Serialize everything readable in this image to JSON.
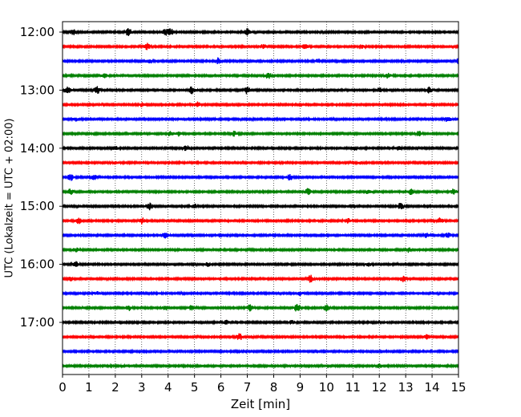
{
  "chart_data": {
    "type": "line",
    "title": "",
    "xlabel": "Zeit  [min]",
    "ylabel": "UTC (Lokalzeit = UTC + 02:00)",
    "xlim": [
      0,
      15
    ],
    "x_ticks": [
      "0",
      "1",
      "2",
      "3",
      "4",
      "5",
      "6",
      "7",
      "8",
      "9",
      "10",
      "11",
      "12",
      "13",
      "14",
      "15"
    ],
    "y_ticks": [
      "12:00",
      "13:00",
      "14:00",
      "15:00",
      "16:00",
      "17:00"
    ],
    "grid": "vertical dotted lines at every minute",
    "trace_start_times": [
      "12:00",
      "12:15",
      "12:30",
      "12:45",
      "13:00",
      "13:15",
      "13:30",
      "13:45",
      "14:00",
      "14:15",
      "14:30",
      "14:45",
      "15:00",
      "15:15",
      "15:30",
      "15:45",
      "16:00",
      "16:15",
      "16:30",
      "16:45",
      "17:00",
      "17:15",
      "17:30",
      "17:45"
    ],
    "trace_minutes_each": 15,
    "color_cycle": [
      "#000000",
      "#ff0000",
      "#0000ff",
      "#008000"
    ],
    "events": [
      [
        [
          0.4,
          0.7
        ],
        [
          2.5,
          1.0
        ],
        [
          3.9,
          0.8
        ],
        [
          4.1,
          0.8
        ],
        [
          7.0,
          0.9
        ]
      ],
      [
        [
          3.2,
          0.9
        ],
        [
          7.6,
          0.6
        ],
        [
          9.2,
          0.6
        ],
        [
          11.3,
          0.5
        ]
      ],
      [
        [
          3.3,
          0.6
        ],
        [
          5.9,
          0.8
        ],
        [
          9.7,
          0.5
        ],
        [
          15.0,
          0.6
        ]
      ],
      [
        [
          1.6,
          0.5
        ],
        [
          7.8,
          0.8
        ],
        [
          12.3,
          0.7
        ]
      ],
      [
        [
          0.2,
          0.8
        ],
        [
          1.3,
          1.0
        ],
        [
          4.9,
          0.9
        ],
        [
          7.0,
          1.0
        ],
        [
          12.0,
          0.6
        ],
        [
          13.9,
          0.8
        ]
      ],
      [
        [
          3.0,
          0.5
        ],
        [
          5.1,
          0.7
        ]
      ],
      [
        [
          0.5,
          0.4
        ],
        [
          14.6,
          0.8
        ]
      ],
      [
        [
          4.1,
          0.7
        ],
        [
          4.4,
          0.6
        ],
        [
          6.5,
          0.6
        ],
        [
          13.5,
          0.6
        ]
      ],
      [
        [
          2.0,
          0.5
        ],
        [
          4.7,
          0.7
        ],
        [
          11.1,
          0.5
        ],
        [
          12.7,
          0.5
        ]
      ],
      [
        [
          2.0,
          0.3
        ],
        [
          11.3,
          0.3
        ]
      ],
      [
        [
          0.3,
          0.9
        ],
        [
          1.2,
          0.6
        ],
        [
          8.6,
          0.8
        ]
      ],
      [
        [
          0.3,
          0.7
        ],
        [
          9.3,
          0.8
        ],
        [
          11.6,
          0.6
        ],
        [
          13.2,
          0.7
        ],
        [
          14.8,
          0.7
        ]
      ],
      [
        [
          3.3,
          0.9
        ],
        [
          5.0,
          0.6
        ],
        [
          12.8,
          0.8
        ]
      ],
      [
        [
          0.6,
          0.7
        ],
        [
          3.0,
          0.8
        ],
        [
          10.8,
          0.6
        ],
        [
          14.3,
          0.7
        ]
      ],
      [
        [
          3.9,
          0.7
        ],
        [
          13.8,
          0.6
        ],
        [
          14.6,
          0.6
        ]
      ],
      [
        [
          0.5,
          0.5
        ],
        [
          13.1,
          0.6
        ]
      ],
      [
        [
          0.5,
          0.7
        ],
        [
          5.5,
          0.5
        ],
        [
          11.6,
          0.5
        ]
      ],
      [
        [
          0.3,
          0.5
        ],
        [
          9.4,
          0.9
        ],
        [
          12.9,
          0.8
        ]
      ],
      [
        [
          1.3,
          0.5
        ],
        [
          9.0,
          0.5
        ]
      ],
      [
        [
          2.5,
          0.7
        ],
        [
          3.9,
          0.6
        ],
        [
          4.9,
          0.6
        ],
        [
          7.1,
          0.8
        ],
        [
          8.9,
          1.1
        ],
        [
          10.0,
          0.8
        ]
      ],
      [
        [
          6.2,
          0.5
        ],
        [
          8.7,
          0.5
        ]
      ],
      [
        [
          6.7,
          0.9
        ],
        [
          13.8,
          0.6
        ]
      ],
      [],
      [
        [
          12.0,
          0.5
        ]
      ]
    ]
  }
}
